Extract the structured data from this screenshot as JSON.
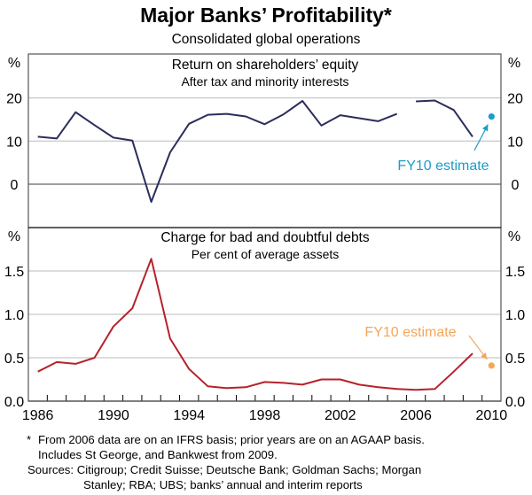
{
  "chart_data": [
    {
      "type": "line",
      "title": "Major Banks’ Profitability*",
      "subtitle": "Consolidated global operations",
      "panel_title": "Return on shareholders’ equity",
      "panel_subtitle": "After tax and minority interests",
      "ylabel_left": "%",
      "ylabel_right": "%",
      "ylim": [
        -10,
        25
      ],
      "yticks": [
        0,
        10,
        20
      ],
      "ytick_labels": [
        "0",
        "10",
        "20"
      ],
      "grid": true,
      "x": [
        1986,
        1987,
        1988,
        1989,
        1990,
        1991,
        1992,
        1993,
        1994,
        1995,
        1996,
        1997,
        1998,
        1999,
        2000,
        2001,
        2002,
        2003,
        2004,
        2005,
        2006,
        2007,
        2008,
        2009
      ],
      "series": [
        {
          "name": "Return on shareholders’ equity",
          "color": "#2b2d5c",
          "segments": [
            {
              "x": [
                1986,
                1987,
                1988,
                1989,
                1990,
                1991,
                1992,
                1993,
                1994,
                1995,
                1996,
                1997,
                1998,
                1999,
                2000,
                2001,
                2002,
                2003,
                2004,
                2005
              ],
              "y": [
                11.0,
                10.6,
                16.7,
                13.7,
                10.8,
                10.1,
                -4.1,
                7.4,
                14.0,
                16.1,
                16.3,
                15.7,
                13.9,
                16.2,
                19.3,
                13.6,
                16.0,
                15.3,
                14.6,
                16.3
              ]
            },
            {
              "x": [
                2006,
                2007,
                2008,
                2009
              ],
              "y": [
                19.2,
                19.4,
                17.2,
                11.0
              ]
            }
          ]
        }
      ],
      "estimate": {
        "label": "FY10 estimate",
        "x": 2010,
        "y": 15.7,
        "color": "#1a9ccc"
      }
    },
    {
      "type": "line",
      "panel_title": "Charge for bad and doubtful debts",
      "panel_subtitle": "Per cent of average assets",
      "ylabel_left": "%",
      "ylabel_right": "%",
      "ylim": [
        0,
        2.0
      ],
      "yticks": [
        0,
        0.5,
        1.0,
        1.5
      ],
      "ytick_labels": [
        "0.0",
        "0.5",
        "1.0",
        "1.5"
      ],
      "grid": true,
      "xlim": [
        1986,
        2010
      ],
      "xtick_labels": [
        "1986",
        "1990",
        "1994",
        "1998",
        "2002",
        "2006",
        "2010"
      ],
      "xticks": [
        1986,
        1990,
        1994,
        1998,
        2002,
        2006,
        2010
      ],
      "series": [
        {
          "name": "Charge for bad and doubtful debts",
          "color": "#b5222b",
          "segments": [
            {
              "x": [
                1986,
                1987,
                1988,
                1989,
                1990,
                1991,
                1992,
                1993,
                1994,
                1995,
                1996,
                1997,
                1998,
                1999,
                2000,
                2001,
                2002,
                2003,
                2004,
                2005,
                2006,
                2007,
                2008,
                2009
              ],
              "y": [
                0.34,
                0.45,
                0.43,
                0.5,
                0.86,
                1.07,
                1.64,
                0.72,
                0.37,
                0.17,
                0.15,
                0.16,
                0.22,
                0.21,
                0.19,
                0.25,
                0.25,
                0.19,
                0.16,
                0.14,
                0.13,
                0.14,
                0.34,
                0.55
              ]
            }
          ]
        }
      ],
      "estimate": {
        "label": "FY10 estimate",
        "x": 2010,
        "y": 0.41,
        "color": "#f4a65a"
      }
    }
  ],
  "footnotes": {
    "star_marker": "*",
    "line1": "From 2006 data are on an IFRS basis; prior years are on an AGAAP basis.",
    "line2": "Includes St George, and Bankwest from 2009.",
    "sources_line1": "Sources: Citigroup; Credit Suisse; Deutsche Bank; Goldman Sachs; Morgan",
    "sources_line2": "Stanley; RBA; UBS; banks’ annual and interim reports"
  }
}
